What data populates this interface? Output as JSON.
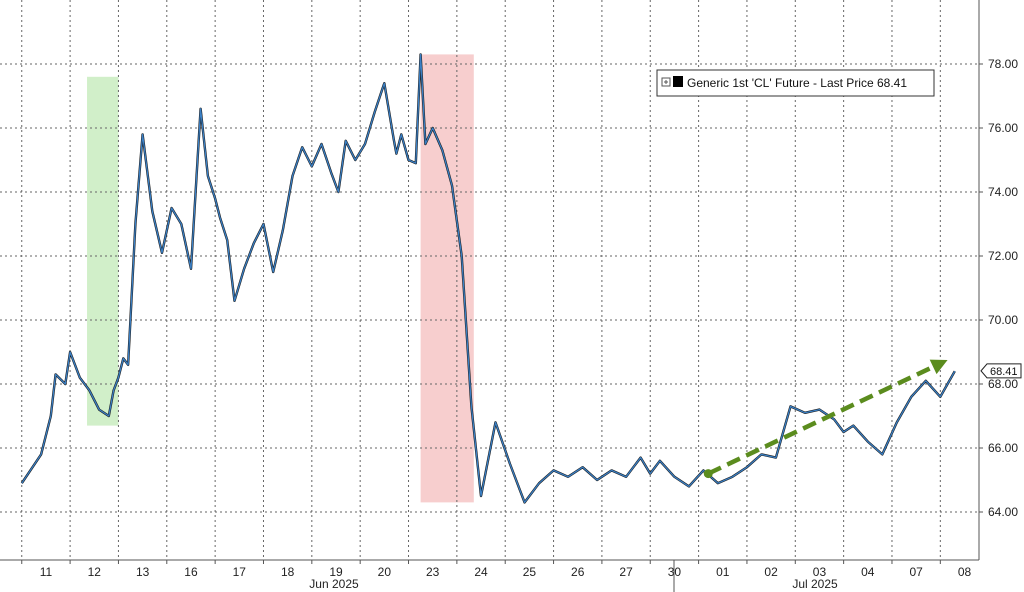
{
  "chart_data": {
    "type": "line",
    "title": "",
    "xlabel": "",
    "ylabel": "",
    "ylim": [
      62.5,
      80.0
    ],
    "y_ticks": [
      "64.00",
      "66.00",
      "68.00",
      "70.00",
      "72.00",
      "74.00",
      "76.00",
      "78.00"
    ],
    "x_day_labels": [
      "11",
      "12",
      "13",
      "16",
      "17",
      "18",
      "19",
      "20",
      "23",
      "24",
      "25",
      "26",
      "27",
      "30",
      "01",
      "02",
      "03",
      "04",
      "07",
      "08"
    ],
    "month_labels": [
      "Jun 2025",
      "Jul 2025"
    ],
    "legend": {
      "position": "top-right",
      "entries": [
        "Generic 1st 'CL' Future - Last Price 68.41"
      ]
    },
    "last_price_label": "68.41",
    "series": [
      {
        "name": "Generic 1st 'CL' Future - Last Price",
        "color": "#3a7fc4",
        "x": [
          0.0,
          0.4,
          0.6,
          0.7,
          0.9,
          1.0,
          1.2,
          1.4,
          1.6,
          1.8,
          1.9,
          2.0,
          2.1,
          2.2,
          2.35,
          2.5,
          2.7,
          2.9,
          3.1,
          3.3,
          3.5,
          3.7,
          3.85,
          4.0,
          4.1,
          4.25,
          4.4,
          4.6,
          4.8,
          5.0,
          5.2,
          5.4,
          5.6,
          5.8,
          6.0,
          6.2,
          6.4,
          6.55,
          6.7,
          6.9,
          7.1,
          7.3,
          7.5,
          7.7,
          7.75,
          7.85,
          8.0,
          8.15,
          8.25,
          8.35,
          8.5,
          8.7,
          8.9,
          9.1,
          9.3,
          9.5,
          9.8,
          10.1,
          10.4,
          10.7,
          11.0,
          11.3,
          11.6,
          11.9,
          12.2,
          12.5,
          12.8,
          13.0,
          13.2,
          13.5,
          13.8,
          14.1,
          14.4,
          14.7,
          15.0,
          15.3,
          15.6,
          15.9,
          16.2,
          16.5,
          16.8,
          17.0,
          17.2,
          17.5,
          17.8,
          18.1,
          18.4,
          18.7,
          19.0,
          19.3
        ],
        "y": [
          64.9,
          65.8,
          67.0,
          68.3,
          68.0,
          69.0,
          68.2,
          67.8,
          67.2,
          67.0,
          67.8,
          68.2,
          68.8,
          68.6,
          73.0,
          75.8,
          73.4,
          72.1,
          73.5,
          73.0,
          71.6,
          76.6,
          74.5,
          73.8,
          73.2,
          72.5,
          70.6,
          71.6,
          72.4,
          73.0,
          71.5,
          72.8,
          74.5,
          75.4,
          74.8,
          75.5,
          74.6,
          74.0,
          75.6,
          75.0,
          75.5,
          76.5,
          77.4,
          75.6,
          75.2,
          75.8,
          75.0,
          74.9,
          78.3,
          75.5,
          76.0,
          75.3,
          74.2,
          72.0,
          67.3,
          64.5,
          66.8,
          65.5,
          64.3,
          64.9,
          65.3,
          65.1,
          65.4,
          65.0,
          65.3,
          65.1,
          65.7,
          65.2,
          65.6,
          65.1,
          64.8,
          65.3,
          64.9,
          65.1,
          65.4,
          65.8,
          65.7,
          67.3,
          67.1,
          67.2,
          66.9,
          66.5,
          66.7,
          66.2,
          65.8,
          66.8,
          67.6,
          68.1,
          67.6,
          68.4
        ]
      }
    ],
    "shaded_regions": [
      {
        "label": "",
        "color": "#c9ecc0",
        "x_start": 1.35,
        "x_end": 2.0,
        "y_low": 66.7,
        "y_high": 77.6
      },
      {
        "label": "",
        "color": "#f6c6c6",
        "x_start": 8.25,
        "x_end": 9.35,
        "y_low": 64.3,
        "y_high": 78.3
      }
    ],
    "trend_arrow": {
      "color": "#5b8c1e",
      "from": {
        "x": 14.2,
        "y": 65.2
      },
      "to": {
        "x": 19.15,
        "y": 68.75
      }
    }
  }
}
